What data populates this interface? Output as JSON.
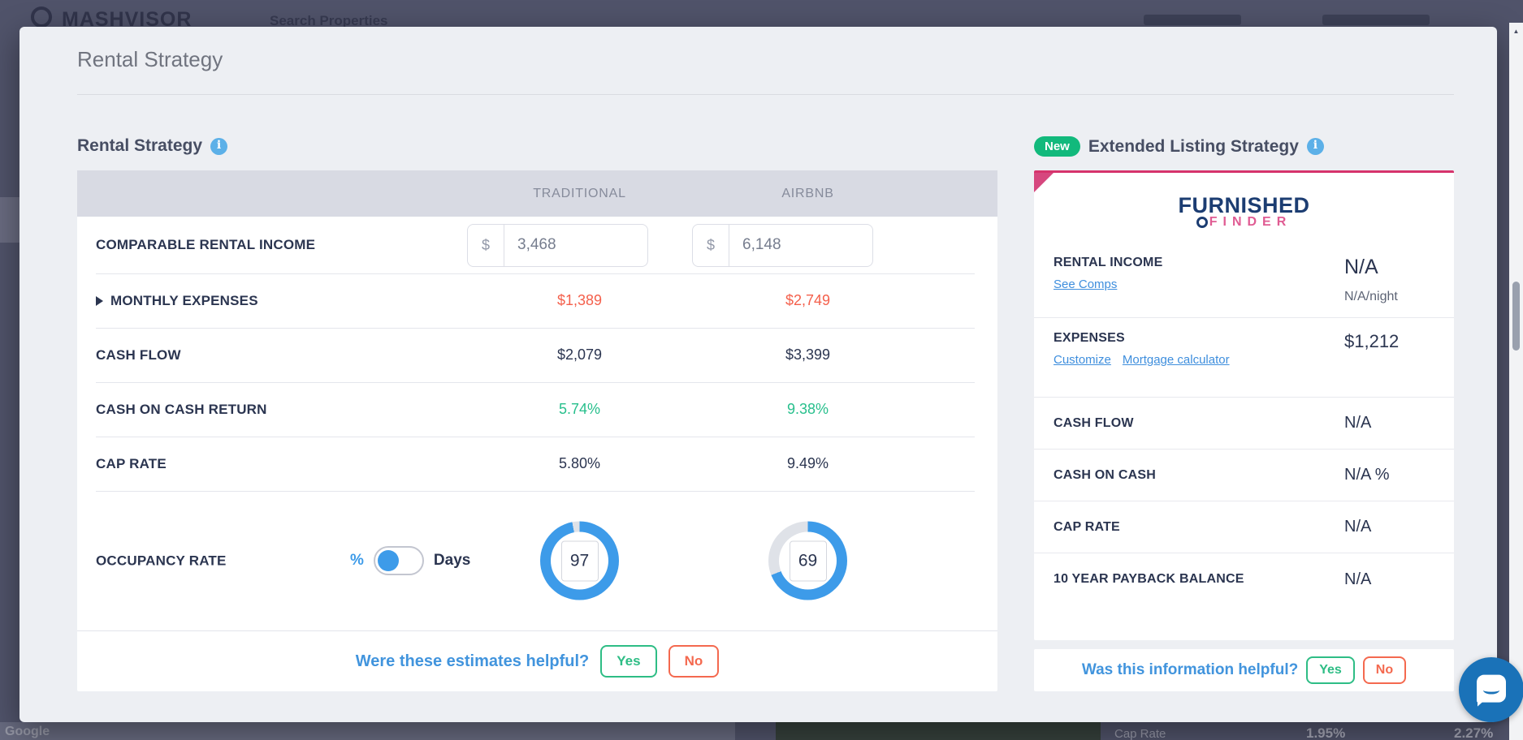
{
  "colors": {
    "accent_blue": "#3d9be9",
    "donut_track": "#dfe2e8",
    "negative_red": "#f4604c",
    "positive_green": "#27bf8c",
    "question_blue": "#4194dd",
    "badge_green": "#12b97c",
    "brand_pink": "#d6336c",
    "navy_text": "#2b3550"
  },
  "background": {
    "brand": "MASHVISOR",
    "nav_item": "Search Properties",
    "watermark": "Google",
    "bottom_stats": {
      "label": "Cap Rate",
      "value_1": "1.95%",
      "value_2": "2.27%"
    }
  },
  "modal": {
    "title": "Rental Strategy"
  },
  "left_panel": {
    "section_title": "Rental Strategy",
    "columns": {
      "traditional": "TRADITIONAL",
      "airbnb": "AIRBNB"
    },
    "income": {
      "label": "COMPARABLE RENTAL INCOME",
      "currency": "$",
      "traditional_value": "3,468",
      "airbnb_value": "6,148"
    },
    "rows": [
      {
        "label": "MONTHLY EXPENSES",
        "traditional": "$1,389",
        "airbnb": "$2,749"
      },
      {
        "label": "CASH FLOW",
        "traditional": "$2,079",
        "airbnb": "$3,399"
      },
      {
        "label": "CASH ON CASH RETURN",
        "traditional": "5.74%",
        "airbnb": "9.38%"
      },
      {
        "label": "CAP RATE",
        "traditional": "5.80%",
        "airbnb": "9.49%"
      }
    ],
    "occupancy": {
      "label": "OCCUPANCY RATE",
      "unit_percent": "%",
      "unit_days": "Days",
      "traditional_value": "97",
      "airbnb_value": "69",
      "traditional_pct": 97,
      "airbnb_pct": 69
    },
    "footer": {
      "question": "Were these estimates helpful?",
      "yes": "Yes",
      "no": "No"
    }
  },
  "right_panel": {
    "badge": "New",
    "section_title": "Extended Listing Strategy",
    "provider": {
      "name_top": "FURNISHED",
      "name_bottom": "FINDER"
    },
    "rental_income": {
      "label": "RENTAL INCOME",
      "link": "See Comps",
      "value": "N/A",
      "subvalue": "N/A/night"
    },
    "expenses": {
      "label": "EXPENSES",
      "link_1": "Customize",
      "link_2": "Mortgage calculator",
      "value": "$1,212"
    },
    "rows": [
      {
        "label": "CASH FLOW",
        "value": "N/A"
      },
      {
        "label": "CASH ON CASH",
        "value": "N/A %"
      },
      {
        "label": "CAP RATE",
        "value": "N/A"
      },
      {
        "label": "10 YEAR PAYBACK BALANCE",
        "value": "N/A"
      }
    ],
    "footer": {
      "question": "Was this information helpful?",
      "yes": "Yes",
      "no": "No"
    }
  }
}
